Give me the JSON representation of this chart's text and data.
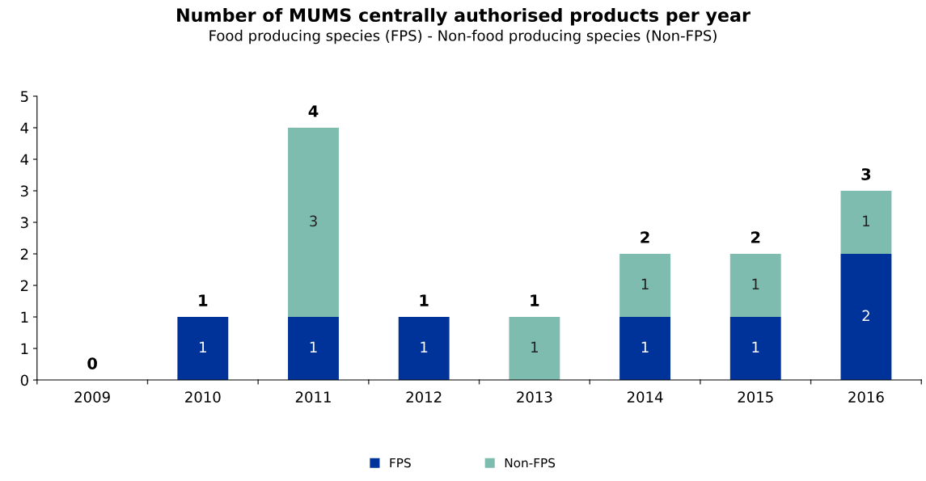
{
  "chart_data": {
    "type": "bar",
    "title": "Number of MUMS centrally authorised products per year",
    "subtitle": "Food producing species (FPS) - Non-food producing species (Non-FPS)",
    "categories": [
      "2009",
      "2010",
      "2011",
      "2012",
      "2013",
      "2014",
      "2015",
      "2016"
    ],
    "stacked": true,
    "series": [
      {
        "name": "FPS",
        "color": "#003399",
        "values": [
          0,
          1,
          1,
          1,
          0,
          1,
          1,
          2
        ],
        "value_labels": [
          null,
          "1",
          "1",
          "1",
          null,
          "1",
          "1",
          "2"
        ]
      },
      {
        "name": "Non-FPS",
        "color": "#7fbcb0",
        "values": [
          0,
          0,
          3,
          0,
          1,
          1,
          1,
          1
        ],
        "value_labels": [
          null,
          null,
          "3",
          null,
          "1",
          "1",
          "1",
          "1"
        ]
      }
    ],
    "totals": [
      "0",
      "1",
      "4",
      "1",
      "1",
      "2",
      "2",
      "3"
    ],
    "ylim": [
      0,
      4.5
    ],
    "yticks": [
      0,
      {
        "value": 0.5,
        "label": "1"
      },
      1,
      {
        "value": 1.5,
        "label": "2"
      },
      2,
      {
        "value": 2.5,
        "label": "3"
      },
      3,
      {
        "value": 3.5,
        "label": "4"
      },
      4,
      {
        "value": 4.5,
        "label": "5"
      }
    ],
    "grid": false,
    "legend": "bottom"
  }
}
